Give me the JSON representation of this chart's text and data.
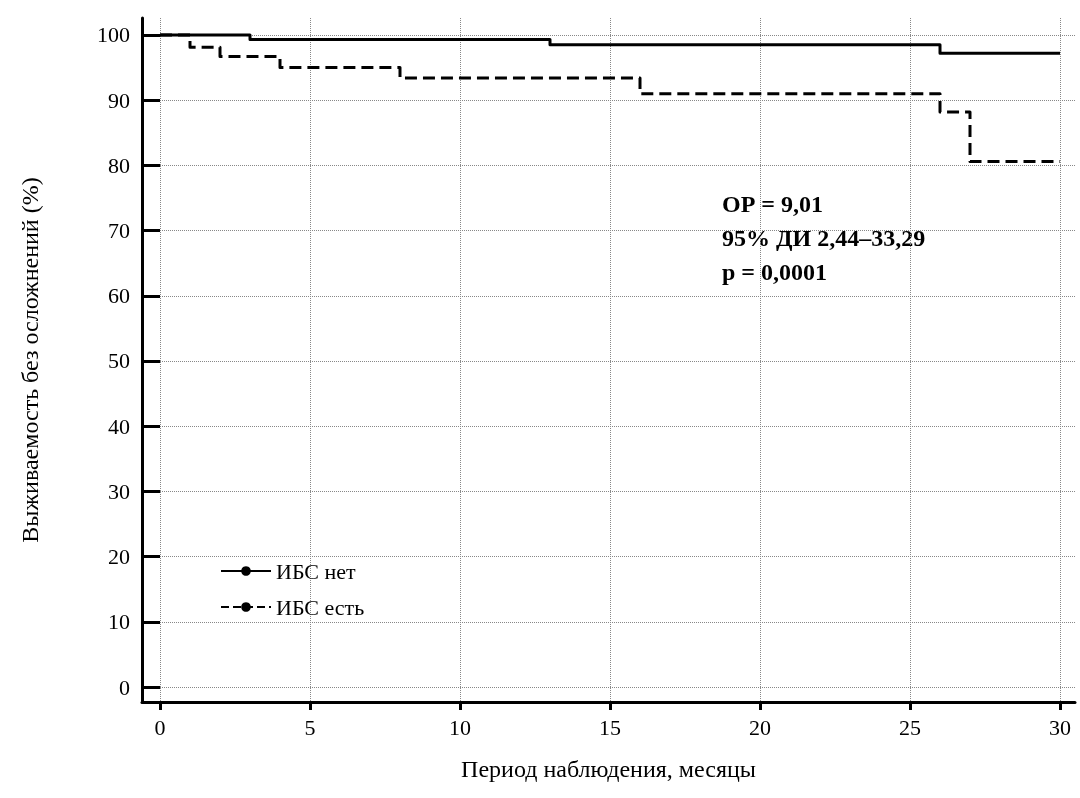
{
  "chart_data": {
    "type": "step",
    "xlabel": "Период наблюдения, месяцы",
    "ylabel": "Выживаемость без осложнений (%)",
    "xlim": [
      -0.6,
      30.5
    ],
    "xticks": [
      0,
      5,
      10,
      15,
      20,
      25,
      30
    ],
    "ylim": [
      -2.3,
      102.6
    ],
    "yticks": [
      0,
      10,
      20,
      30,
      40,
      50,
      60,
      70,
      80,
      90,
      100
    ],
    "grid": true,
    "legend": "bottom left",
    "marker": "none",
    "series": [
      {
        "name": "ИБС нет",
        "color": "#000000",
        "line_style": "solid",
        "x": [
          0,
          3,
          13,
          26,
          30
        ],
        "values": [
          100,
          99.3,
          98.5,
          97.2,
          97.2
        ]
      },
      {
        "name": "ИБС есть",
        "color": "#000000",
        "line_style": "dashed",
        "x": [
          0,
          1,
          2,
          4,
          8,
          16,
          26,
          27,
          30
        ],
        "values": [
          100,
          98.1,
          96.7,
          95,
          93.4,
          91,
          88.2,
          80.6,
          80.6
        ]
      }
    ],
    "annotations": [
      "ОР = 9,01",
      "95% ДИ 2,44–33,29",
      "p = 0,0001"
    ]
  }
}
